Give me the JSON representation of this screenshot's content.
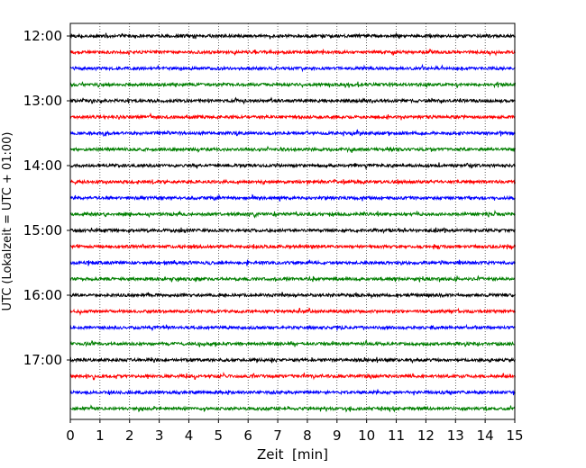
{
  "chart_data": {
    "type": "line",
    "title": "",
    "xlabel": "Zeit  [min]",
    "ylabel": "UTC (Lokalzeit = UTC + 01:00)",
    "xlim": [
      0,
      15
    ],
    "x_ticks": [
      "0",
      "1",
      "2",
      "3",
      "4",
      "5",
      "6",
      "7",
      "8",
      "9",
      "10",
      "11",
      "12",
      "13",
      "14",
      "15"
    ],
    "y_tick_labels": [
      "12:00",
      "13:00",
      "14:00",
      "15:00",
      "16:00",
      "17:00"
    ],
    "trace_start_times": [
      "12:00",
      "12:15",
      "12:30",
      "12:45",
      "13:00",
      "13:15",
      "13:30",
      "13:45",
      "14:00",
      "14:15",
      "14:30",
      "14:45",
      "15:00",
      "15:15",
      "15:30",
      "15:45",
      "16:00",
      "16:15",
      "16:30",
      "16:45",
      "17:00",
      "17:15",
      "17:30",
      "17:45"
    ],
    "trace_color_cycle": [
      "#000000",
      "#ff0000",
      "#0000ff",
      "#007f00"
    ],
    "trace_duration_min": 15,
    "vertical_grid": true,
    "grid_style": "dotted"
  }
}
